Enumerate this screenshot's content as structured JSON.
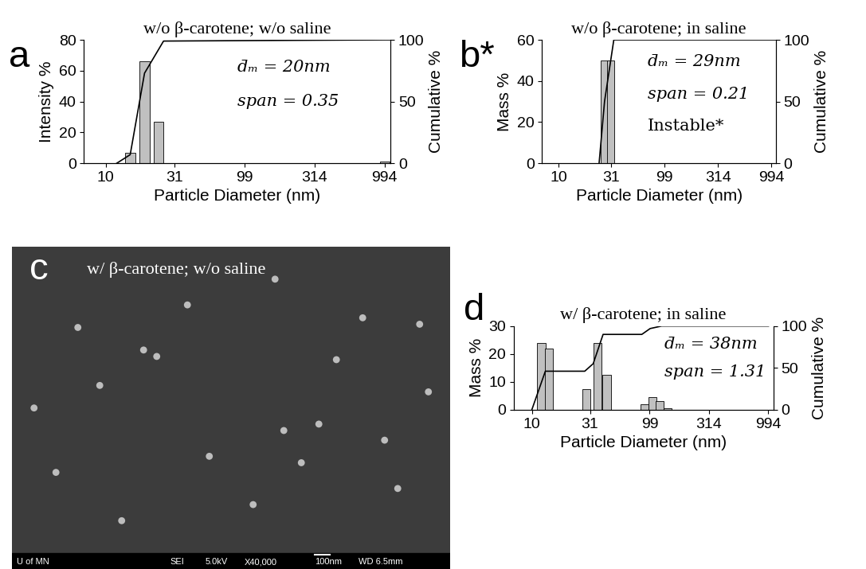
{
  "chart_data": [
    {
      "type": "bar",
      "label": "a",
      "title": "w/o β-carotene; w/o saline",
      "xlabel": "Particle Diameter (nm)",
      "ylabel": "Intensity %",
      "y2label": "Cumulative %",
      "log": "x",
      "xlim": [
        7,
        1100
      ],
      "xticks": [
        10,
        31,
        99,
        314,
        994
      ],
      "ylim": [
        0,
        80
      ],
      "yticks": [
        0,
        20,
        40,
        60,
        80
      ],
      "y2lim": [
        0,
        100
      ],
      "y2ticks": [
        0,
        50,
        100
      ],
      "annotations": [
        "d̄ₘ = 20nm",
        "span = 0.35"
      ],
      "series": [
        {
          "type": "bar",
          "color": "#c0c0c0",
          "x": [
            15,
            19,
            24,
            1000
          ],
          "values": [
            7,
            66,
            27,
            1
          ]
        },
        {
          "type": "line",
          "axis": "y2",
          "color": "#000000",
          "x": [
            12,
            15,
            19,
            26,
            1000,
            1100
          ],
          "values": [
            0,
            7,
            73,
            99,
            100,
            100
          ]
        }
      ]
    },
    {
      "type": "bar",
      "label": "b*",
      "title": "w/o β-carotene; in saline",
      "xlabel": "Particle Diameter (nm)",
      "ylabel": "Mass %",
      "y2label": "Cumulative %",
      "log": "x",
      "xlim": [
        7,
        1100
      ],
      "xticks": [
        10,
        31,
        99,
        314,
        994
      ],
      "ylim": [
        0,
        60
      ],
      "yticks": [
        0,
        20,
        40,
        60
      ],
      "y2lim": [
        0,
        100
      ],
      "y2ticks": [
        0,
        50,
        100
      ],
      "annotations": [
        "d̄ₘ = 29nm",
        "span = 0.21",
        "Instable*"
      ],
      "series": [
        {
          "type": "bar",
          "color": "#c0c0c0",
          "x": [
            27,
            31
          ],
          "values": [
            50,
            50
          ]
        },
        {
          "type": "line",
          "axis": "y2",
          "color": "#000000",
          "x": [
            24,
            27,
            33,
            1100
          ],
          "values": [
            0,
            50,
            100,
            100
          ]
        }
      ]
    },
    {
      "type": "image",
      "label": "c",
      "title": "w/ β-carotene; w/o saline",
      "info_bar": [
        "U of MN",
        "SEI",
        "5.0kV",
        "X40,000",
        "100nm",
        "WD 6.5mm"
      ]
    },
    {
      "type": "bar",
      "label": "d",
      "title": "w/ β-carotene; in saline",
      "xlabel": "Particle Diameter (nm)",
      "ylabel": "Mass %",
      "y2label": "Cumulative %",
      "log": "x",
      "xlim": [
        7,
        1100
      ],
      "xticks": [
        10,
        31,
        99,
        314,
        994
      ],
      "ylim": [
        0,
        30
      ],
      "yticks": [
        0,
        10,
        20,
        30
      ],
      "y2lim": [
        0,
        100
      ],
      "y2ticks": [
        0,
        50,
        100
      ],
      "annotations": [
        "d̄ₘ = 38nm",
        "span = 1.31"
      ],
      "series": [
        {
          "type": "bar",
          "color": "#c0c0c0",
          "x": [
            12,
            14,
            29,
            36,
            43,
            90,
            105,
            120,
            140
          ],
          "values": [
            24,
            22,
            7.5,
            24,
            12.5,
            2,
            4.5,
            3,
            0.5
          ]
        },
        {
          "type": "line",
          "axis": "y2",
          "color": "#000000",
          "x": [
            10,
            13,
            28,
            33,
            40,
            85,
            100,
            125,
            1000
          ],
          "values": [
            0,
            46,
            46,
            55,
            90,
            90,
            97,
            100,
            100
          ]
        }
      ]
    }
  ]
}
